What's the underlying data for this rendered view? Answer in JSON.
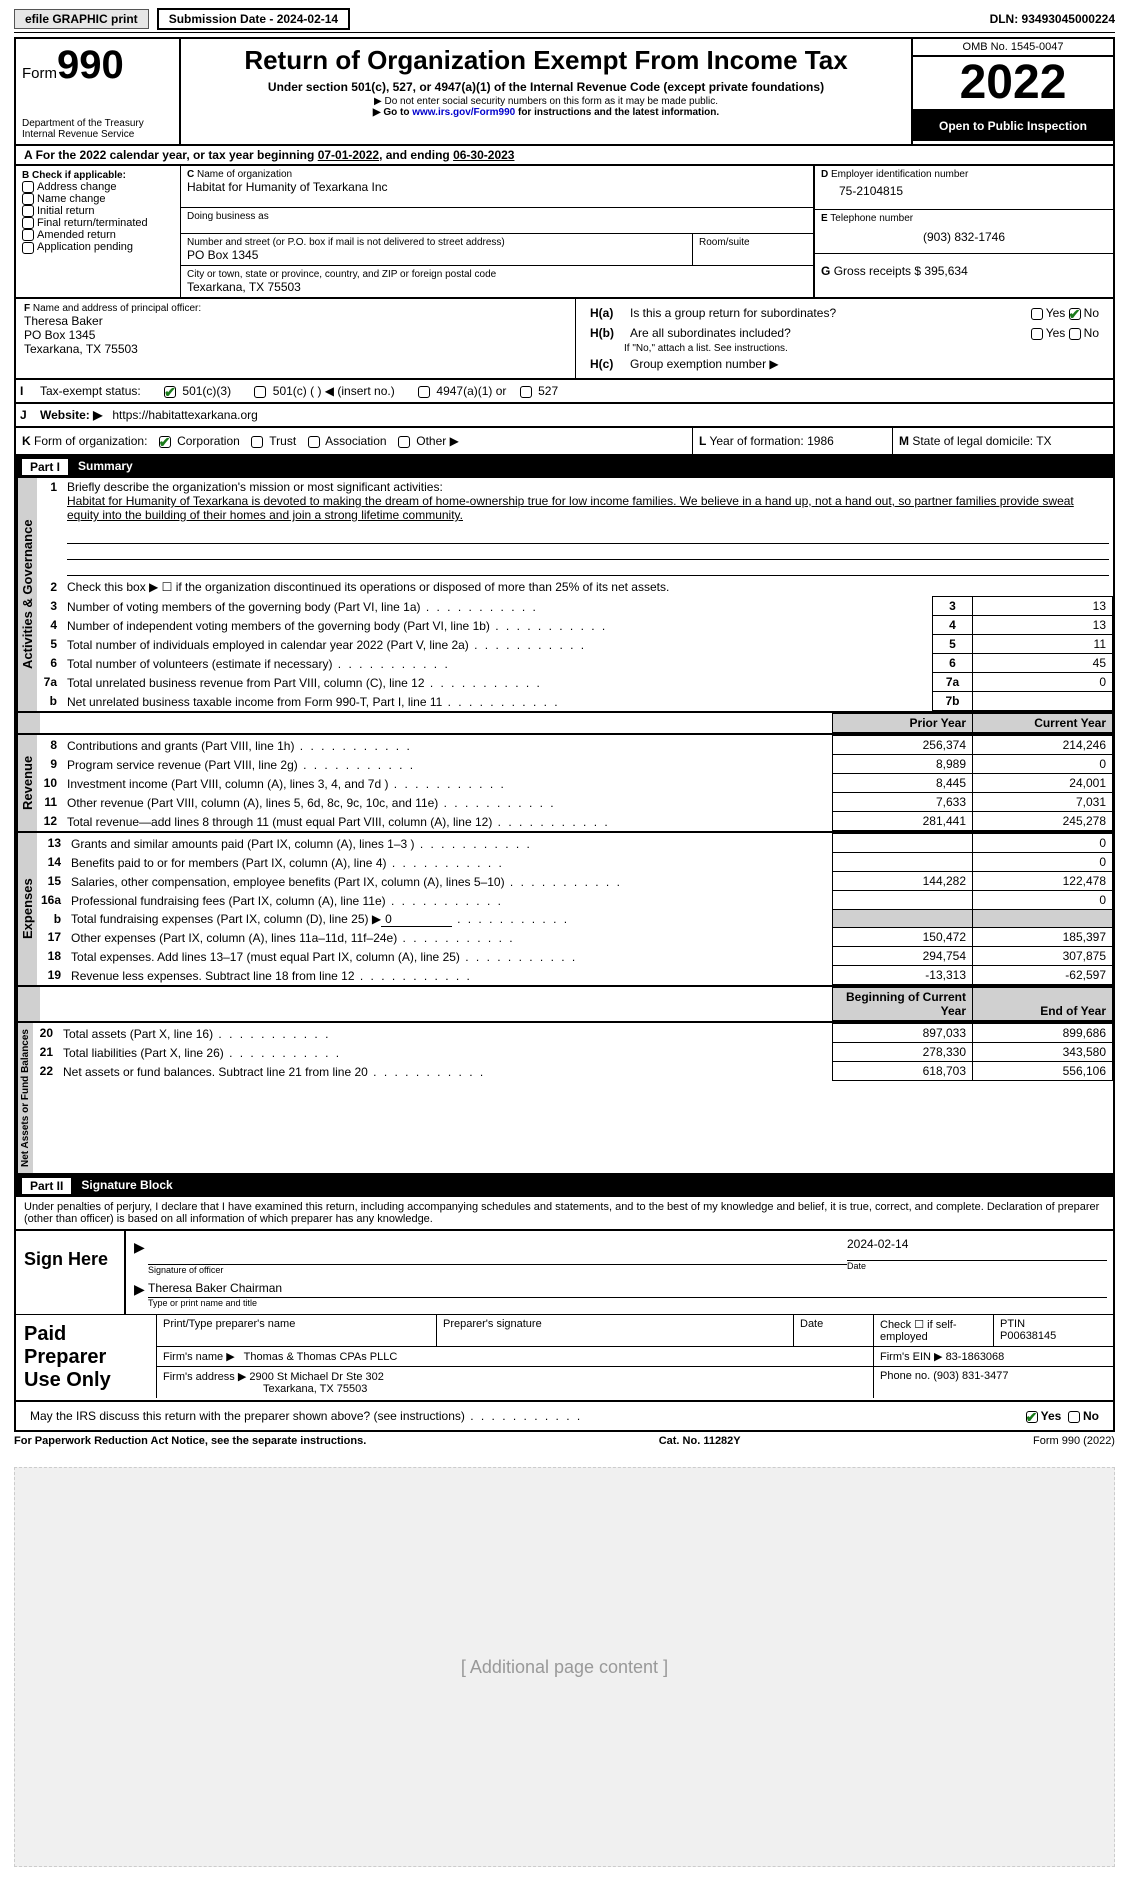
{
  "topbar": {
    "efile": "efile GRAPHIC print",
    "sub_label": "Submission Date - 2024-02-14",
    "dln": "DLN: 93493045000224"
  },
  "header": {
    "form_word": "Form",
    "form_num": "990",
    "dept": "Department of the Treasury",
    "irs": "Internal Revenue Service",
    "title": "Return of Organization Exempt From Income Tax",
    "subtitle": "Under section 501(c), 527, or 4947(a)(1) of the Internal Revenue Code (except private foundations)",
    "note1": "Do not enter social security numbers on this form as it may be made public.",
    "note2_pre": "Go to ",
    "note2_link": "www.irs.gov/Form990",
    "note2_post": " for instructions and the latest information.",
    "omb": "OMB No. 1545-0047",
    "year": "2022",
    "inspect": "Open to Public Inspection"
  },
  "period": {
    "text_pre": "For the 2022 calendar year, or tax year beginning ",
    "begin": "07-01-2022",
    "mid": ", and ending ",
    "end": "06-30-2023"
  },
  "boxB": {
    "label": "Check if applicable:",
    "items": [
      "Address change",
      "Name change",
      "Initial return",
      "Final return/terminated",
      "Amended return",
      "Application pending"
    ]
  },
  "boxC": {
    "label": "Name of organization",
    "name": "Habitat for Humanity of Texarkana Inc",
    "dba_label": "Doing business as",
    "street_label": "Number and street (or P.O. box if mail is not delivered to street address)",
    "room_label": "Room/suite",
    "street": "PO Box 1345",
    "city_label": "City or town, state or province, country, and ZIP or foreign postal code",
    "city": "Texarkana, TX  75503"
  },
  "boxD": {
    "label": "Employer identification number",
    "value": "75-2104815"
  },
  "boxE": {
    "label": "Telephone number",
    "value": "(903) 832-1746"
  },
  "boxG": {
    "label": "Gross receipts $",
    "value": "395,634"
  },
  "boxF": {
    "label": "Name and address of principal officer:",
    "name": "Theresa Baker",
    "addr1": "PO Box 1345",
    "addr2": "Texarkana, TX  75503"
  },
  "boxH": {
    "a_label": "Is this a group return for subordinates?",
    "b_label": "Are all subordinates included?",
    "b_note": "If \"No,\" attach a list. See instructions.",
    "c_label": "Group exemption number ▶",
    "yes": "Yes",
    "no": "No"
  },
  "boxI": {
    "label": "Tax-exempt status:",
    "opts": [
      "501(c)(3)",
      "501(c) (  ) ◀ (insert no.)",
      "4947(a)(1) or",
      "527"
    ]
  },
  "boxJ": {
    "label": "Website: ▶",
    "value": "https://habitattexarkana.org"
  },
  "boxK": {
    "label": "Form of organization:",
    "opts": [
      "Corporation",
      "Trust",
      "Association",
      "Other ▶"
    ]
  },
  "boxL": {
    "label": "Year of formation:",
    "value": "1986"
  },
  "boxM": {
    "label": "State of legal domicile:",
    "value": "TX"
  },
  "part1": {
    "hdr_num": "Part I",
    "hdr_title": "Summary",
    "vert1": "Activities & Governance",
    "vert2": "Revenue",
    "vert3": "Expenses",
    "vert4": "Net Assets or Fund Balances",
    "l1_label": "Briefly describe the organization's mission or most significant activities:",
    "l1_text": "Habitat for Humanity of Texarkana is devoted to making the dream of home-ownership true for low income families. We believe in a hand up, not a hand out, so partner families provide sweat equity into the building of their homes and join a strong lifetime community.",
    "l2_label": "Check this box ▶ ☐ if the organization discontinued its operations or disposed of more than 25% of its net assets.",
    "rows_ag": [
      {
        "n": "3",
        "t": "Number of voting members of the governing body (Part VI, line 1a)",
        "b": "3",
        "v": "13"
      },
      {
        "n": "4",
        "t": "Number of independent voting members of the governing body (Part VI, line 1b)",
        "b": "4",
        "v": "13"
      },
      {
        "n": "5",
        "t": "Total number of individuals employed in calendar year 2022 (Part V, line 2a)",
        "b": "5",
        "v": "11"
      },
      {
        "n": "6",
        "t": "Total number of volunteers (estimate if necessary)",
        "b": "6",
        "v": "45"
      },
      {
        "n": "7a",
        "t": "Total unrelated business revenue from Part VIII, column (C), line 12",
        "b": "7a",
        "v": "0"
      },
      {
        "n": "b",
        "t": "Net unrelated business taxable income from Form 990-T, Part I, line 11",
        "b": "7b",
        "v": ""
      }
    ],
    "col_prior": "Prior Year",
    "col_current": "Current Year",
    "rows_rev": [
      {
        "n": "8",
        "t": "Contributions and grants (Part VIII, line 1h)",
        "p": "256,374",
        "c": "214,246"
      },
      {
        "n": "9",
        "t": "Program service revenue (Part VIII, line 2g)",
        "p": "8,989",
        "c": "0"
      },
      {
        "n": "10",
        "t": "Investment income (Part VIII, column (A), lines 3, 4, and 7d )",
        "p": "8,445",
        "c": "24,001"
      },
      {
        "n": "11",
        "t": "Other revenue (Part VIII, column (A), lines 5, 6d, 8c, 9c, 10c, and 11e)",
        "p": "7,633",
        "c": "7,031"
      },
      {
        "n": "12",
        "t": "Total revenue—add lines 8 through 11 (must equal Part VIII, column (A), line 12)",
        "p": "281,441",
        "c": "245,278"
      }
    ],
    "rows_exp": [
      {
        "n": "13",
        "t": "Grants and similar amounts paid (Part IX, column (A), lines 1–3 )",
        "p": "",
        "c": "0"
      },
      {
        "n": "14",
        "t": "Benefits paid to or for members (Part IX, column (A), line 4)",
        "p": "",
        "c": "0"
      },
      {
        "n": "15",
        "t": "Salaries, other compensation, employee benefits (Part IX, column (A), lines 5–10)",
        "p": "144,282",
        "c": "122,478"
      },
      {
        "n": "16a",
        "t": "Professional fundraising fees (Part IX, column (A), line 11e)",
        "p": "",
        "c": "0"
      },
      {
        "n": "b",
        "t": "Total fundraising expenses (Part IX, column (D), line 25) ▶",
        "p": "shade",
        "c": "shade",
        "extra": "0"
      },
      {
        "n": "17",
        "t": "Other expenses (Part IX, column (A), lines 11a–11d, 11f–24e)",
        "p": "150,472",
        "c": "185,397"
      },
      {
        "n": "18",
        "t": "Total expenses. Add lines 13–17 (must equal Part IX, column (A), line 25)",
        "p": "294,754",
        "c": "307,875"
      },
      {
        "n": "19",
        "t": "Revenue less expenses. Subtract line 18 from line 12",
        "p": "-13,313",
        "c": "-62,597"
      }
    ],
    "col_boy": "Beginning of Current Year",
    "col_eoy": "End of Year",
    "rows_net": [
      {
        "n": "20",
        "t": "Total assets (Part X, line 16)",
        "p": "897,033",
        "c": "899,686"
      },
      {
        "n": "21",
        "t": "Total liabilities (Part X, line 26)",
        "p": "278,330",
        "c": "343,580"
      },
      {
        "n": "22",
        "t": "Net assets or fund balances. Subtract line 21 from line 20",
        "p": "618,703",
        "c": "556,106"
      }
    ]
  },
  "part2": {
    "hdr_num": "Part II",
    "hdr_title": "Signature Block",
    "decl": "Under penalties of perjury, I declare that I have examined this return, including accompanying schedules and statements, and to the best of my knowledge and belief, it is true, correct, and complete. Declaration of preparer (other than officer) is based on all information of which preparer has any knowledge.",
    "sign_here": "Sign Here",
    "sig_officer": "Signature of officer",
    "sig_date_val": "2024-02-14",
    "sig_date": "Date",
    "officer_name": "Theresa Baker  Chairman",
    "officer_label": "Type or print name and title",
    "paid": "Paid Preparer Use Only",
    "pp_name_label": "Print/Type preparer's name",
    "pp_sig_label": "Preparer's signature",
    "pp_date_label": "Date",
    "pp_check_label": "Check ☐ if self-employed",
    "pp_ptin_label": "PTIN",
    "pp_ptin": "P00638145",
    "firm_name_label": "Firm's name    ▶",
    "firm_name": "Thomas & Thomas CPAs PLLC",
    "firm_ein_label": "Firm's EIN ▶",
    "firm_ein": "83-1863068",
    "firm_addr_label": "Firm's address ▶",
    "firm_addr1": "2900 St Michael Dr Ste 302",
    "firm_addr2": "Texarkana, TX  75503",
    "firm_phone_label": "Phone no.",
    "firm_phone": "(903) 831-3477",
    "discuss": "May the IRS discuss this return with the preparer shown above? (see instructions)"
  },
  "footer": {
    "left": "For Paperwork Reduction Act Notice, see the separate instructions.",
    "mid": "Cat. No. 11282Y",
    "right": "Form 990 (2022)"
  }
}
